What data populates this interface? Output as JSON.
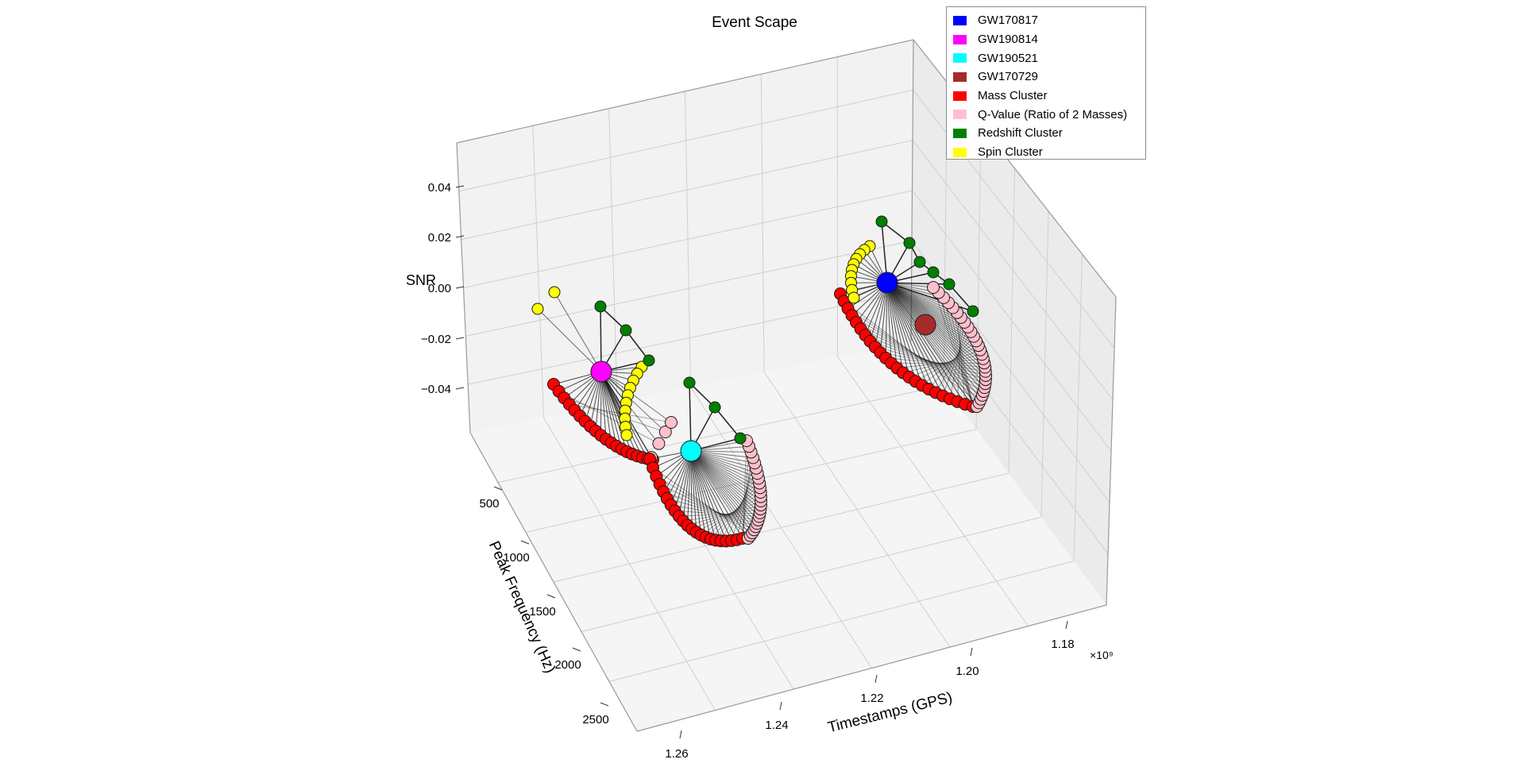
{
  "chart_data": {
    "type": "scatter3d",
    "title": "Event Scape",
    "xlabel": "Timestamps (GPS)",
    "ylabel": "Peak Frequency (Hz)",
    "zlabel": "SNR",
    "x_ticks": [
      "1.26",
      "1.24",
      "1.22",
      "1.20",
      "1.18"
    ],
    "x_offset": "×10⁹",
    "y_ticks": [
      "500",
      "1000",
      "1500",
      "2000",
      "2500"
    ],
    "z_ticks": [
      "0.04",
      "0.02",
      "0.00",
      "−0.02",
      "−0.04"
    ],
    "grid": true,
    "legend_position": "top-right",
    "legend": [
      {
        "label": "GW170817",
        "color": "#0000ff"
      },
      {
        "label": "GW190814",
        "color": "#ff00ff"
      },
      {
        "label": "GW190521",
        "color": "#00ffff"
      },
      {
        "label": "GW170729",
        "color": "#a52a2a"
      },
      {
        "label": "Mass Cluster",
        "color": "#ff0000"
      },
      {
        "label": "Q-Value (Ratio of 2 Masses)",
        "color": "#ffc0cb"
      },
      {
        "label": "Redshift Cluster",
        "color": "#008000"
      },
      {
        "label": "Spin Cluster",
        "color": "#ffff00"
      }
    ],
    "events": [
      {
        "name": "GW170817",
        "timestamp_gps": 1187008882,
        "color": "#0000ff"
      },
      {
        "name": "GW190814",
        "timestamp_gps": 1249852257,
        "color": "#ff00ff"
      },
      {
        "name": "GW190521",
        "timestamp_gps": 1242442967,
        "color": "#00ffff"
      },
      {
        "name": "GW170729",
        "timestamp_gps": 1185389807,
        "color": "#a52a2a"
      }
    ],
    "cluster_colors": {
      "mass": "#ff0000",
      "q": "#ffc0cb",
      "redshift": "#008000",
      "spin": "#ffff00"
    }
  }
}
